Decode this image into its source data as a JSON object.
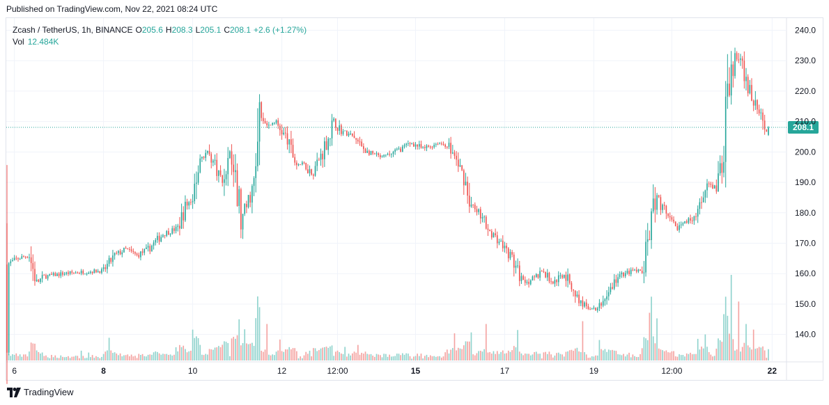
{
  "published": "Published on TradingView.com, Nov 22, 2021 08:24 UTC",
  "legend": {
    "symbol": "Zcash / TetherUS, 1h, BINANCE",
    "open_label": "O",
    "open": "205.6",
    "high_label": "H",
    "high": "208.3",
    "low_label": "L",
    "low": "205.1",
    "close_label": "C",
    "close": "208.1",
    "change": "+2.6 (+1.27%)",
    "vol_label": "Vol",
    "vol": "12.484K"
  },
  "footer": {
    "brand": "TradingView"
  },
  "colors": {
    "up": "#26a69a",
    "down": "#ef5350",
    "vol_up": "#8fd3cd",
    "vol_down": "#f4a3a1",
    "grid": "#f0f3fa",
    "price_line": "#26a69a",
    "last_price_bg": "#26a69a"
  },
  "chart_data": {
    "type": "candlestick",
    "interval": "1h",
    "ylim": [
      131,
      244
    ],
    "y_ticks": [
      "140.0",
      "150.0",
      "160.0",
      "170.0",
      "180.0",
      "190.0",
      "200.0",
      "210.0",
      "220.0",
      "230.0",
      "240.0"
    ],
    "last_price": "208.1",
    "x_ticks": [
      {
        "label": "6",
        "bold": false
      },
      {
        "label": "8",
        "bold": true
      },
      {
        "label": "10",
        "bold": false
      },
      {
        "label": "12",
        "bold": false
      },
      {
        "label": "12:00",
        "bold": false
      },
      {
        "label": "15",
        "bold": true
      },
      {
        "label": "17",
        "bold": false
      },
      {
        "label": "19",
        "bold": false
      },
      {
        "label": "12:00",
        "bold": false
      },
      {
        "label": "22",
        "bold": true
      }
    ],
    "x_tick_index": [
      4,
      52,
      100,
      148,
      178,
      220,
      268,
      316,
      358,
      412
    ],
    "price_path": [
      [
        0,
        163
      ],
      [
        6,
        165
      ],
      [
        12,
        166
      ],
      [
        16,
        157
      ],
      [
        20,
        159
      ],
      [
        30,
        160
      ],
      [
        40,
        160.5
      ],
      [
        52,
        161
      ],
      [
        58,
        166
      ],
      [
        64,
        168
      ],
      [
        70,
        166
      ],
      [
        76,
        168
      ],
      [
        84,
        173
      ],
      [
        92,
        175
      ],
      [
        96,
        182
      ],
      [
        100,
        185
      ],
      [
        104,
        198
      ],
      [
        108,
        200
      ],
      [
        112,
        196
      ],
      [
        116,
        190
      ],
      [
        120,
        200
      ],
      [
        124,
        188
      ],
      [
        126,
        176
      ],
      [
        128,
        180
      ],
      [
        134,
        192
      ],
      [
        136,
        212
      ],
      [
        140,
        208
      ],
      [
        144,
        210
      ],
      [
        150,
        205
      ],
      [
        156,
        196
      ],
      [
        160,
        196
      ],
      [
        164,
        193
      ],
      [
        170,
        200
      ],
      [
        176,
        210
      ],
      [
        180,
        207
      ],
      [
        186,
        205
      ],
      [
        194,
        200
      ],
      [
        202,
        198
      ],
      [
        212,
        201
      ],
      [
        218,
        203
      ],
      [
        224,
        201
      ],
      [
        232,
        203
      ],
      [
        238,
        202
      ],
      [
        246,
        192
      ],
      [
        250,
        182
      ],
      [
        254,
        180
      ],
      [
        260,
        174
      ],
      [
        266,
        170
      ],
      [
        272,
        165
      ],
      [
        276,
        159
      ],
      [
        282,
        157
      ],
      [
        288,
        161
      ],
      [
        294,
        157
      ],
      [
        300,
        160
      ],
      [
        304,
        156
      ],
      [
        308,
        151
      ],
      [
        312,
        149
      ],
      [
        318,
        148
      ],
      [
        322,
        152
      ],
      [
        328,
        158
      ],
      [
        332,
        160
      ],
      [
        338,
        161
      ],
      [
        342,
        160
      ],
      [
        346,
        172
      ],
      [
        348,
        180
      ],
      [
        350,
        185
      ],
      [
        356,
        178
      ],
      [
        360,
        175
      ],
      [
        366,
        177
      ],
      [
        372,
        180
      ],
      [
        378,
        189
      ],
      [
        382,
        188
      ],
      [
        386,
        199
      ],
      [
        388,
        218
      ],
      [
        390,
        226
      ],
      [
        392,
        232
      ],
      [
        396,
        228
      ],
      [
        400,
        220
      ],
      [
        404,
        214
      ],
      [
        408,
        207
      ]
    ],
    "volume_max": 61000,
    "volume_spikes": [
      {
        "i": 100,
        "v": 22000
      },
      {
        "i": 124,
        "v": 18000
      },
      {
        "i": 136,
        "v": 38000
      },
      {
        "i": 140,
        "v": 26000
      },
      {
        "i": 250,
        "v": 20000
      },
      {
        "i": 258,
        "v": 26000
      },
      {
        "i": 310,
        "v": 28000
      },
      {
        "i": 346,
        "v": 34000
      },
      {
        "i": 350,
        "v": 30000
      },
      {
        "i": 386,
        "v": 33000
      },
      {
        "i": 390,
        "v": 61000
      },
      {
        "i": 394,
        "v": 42000
      },
      {
        "i": 398,
        "v": 26000
      },
      {
        "i": 402,
        "v": 22000
      }
    ]
  }
}
